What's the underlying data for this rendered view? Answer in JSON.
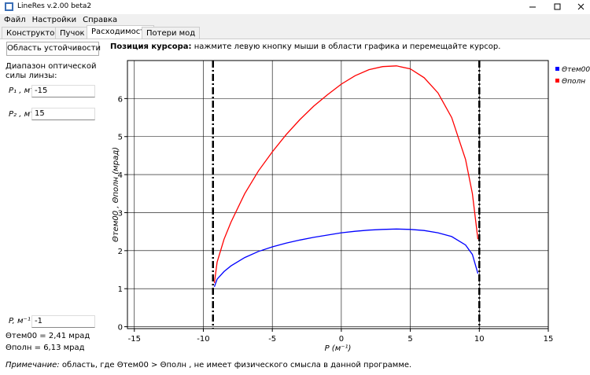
{
  "window": {
    "title": "LineRes v.2.00 beta2",
    "menu": [
      "Файл",
      "Настройки",
      "Справка"
    ],
    "tabs": [
      "Конструктор",
      "Пучок",
      "Расходимость",
      "Потери мод"
    ],
    "active_tab": 2
  },
  "panel": {
    "button": "Область устойчивости",
    "range_label_1": "Диапазон оптической",
    "range_label_2": "силы линзы:",
    "p1_label": "P₁ , м⁻¹",
    "p1_value": "-15",
    "p2_label": "P₂ , м⁻¹",
    "p2_value": "15",
    "p_label": "P, м⁻¹",
    "p_value": "-1",
    "theta_tem": "Θтем00 = 2,41 мрад",
    "theta_full": "Θполн = 6,13 мрад"
  },
  "cursor": {
    "label": "Позиция курсора:",
    "text": "нажмите левую кнопку мыши в области графика и перемещайте курсор."
  },
  "note": {
    "label": "Примечание:",
    "text": "область, где Θтем00 > Θполн , не имеет физического смысла в данной программе."
  },
  "chart_data": {
    "type": "line",
    "x_label": "P (м⁻¹)",
    "y_label": "Θтем00 , Θполн (мрад)",
    "xlim": [
      -15.5,
      15
    ],
    "ylim": [
      -0.05,
      7
    ],
    "xticks": [
      -15,
      -10,
      -5,
      0,
      5,
      10,
      15
    ],
    "yticks": [
      0,
      1,
      2,
      3,
      4,
      5,
      6
    ],
    "grid": true,
    "legend": "right",
    "boundaries": [
      -9.3,
      10
    ],
    "x": [
      -9.2,
      -9,
      -8.5,
      -8,
      -7,
      -6,
      -5,
      -4,
      -3,
      -2,
      -1,
      0,
      1,
      2,
      3,
      4,
      5,
      6,
      7,
      8,
      9,
      9.5,
      9.9
    ],
    "series": [
      {
        "name": "Θтем00",
        "color": "#0000ff",
        "values": [
          1.05,
          1.25,
          1.45,
          1.6,
          1.82,
          1.98,
          2.1,
          2.2,
          2.28,
          2.35,
          2.41,
          2.47,
          2.51,
          2.54,
          2.56,
          2.57,
          2.56,
          2.53,
          2.47,
          2.37,
          2.15,
          1.9,
          1.4
        ]
      },
      {
        "name": "Θполн",
        "color": "#ff0000",
        "values": [
          1.15,
          1.7,
          2.3,
          2.75,
          3.5,
          4.1,
          4.6,
          5.05,
          5.45,
          5.8,
          6.1,
          6.38,
          6.6,
          6.76,
          6.84,
          6.86,
          6.78,
          6.55,
          6.15,
          5.5,
          4.4,
          3.5,
          2.3
        ]
      }
    ]
  }
}
